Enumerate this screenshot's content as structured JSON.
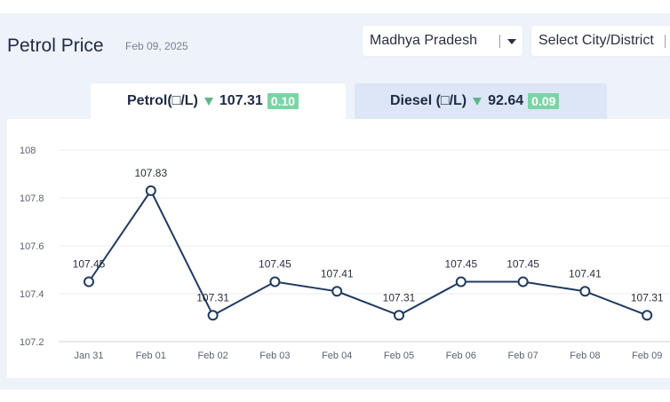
{
  "header": {
    "title": "Petrol Price",
    "date": "Feb 09, 2025",
    "state_select": "Madhya Pradesh",
    "city_select": "Select City/District"
  },
  "tabs": [
    {
      "label": "Petrol(□/L)",
      "price": "107.31",
      "change": "0.10",
      "active": true,
      "trend": "down"
    },
    {
      "label": "Diesel (□/L)",
      "price": "92.64",
      "change": "0.09",
      "active": false,
      "trend": "down"
    }
  ],
  "colors": {
    "line": "#1f3a5f",
    "badge": "#7cd4a6",
    "trend_down": "#5cb88b",
    "active_tab": "#ffffff",
    "inactive_tab": "#dce6f6"
  },
  "chart_data": {
    "type": "line",
    "categories": [
      "Jan 31",
      "Feb 01",
      "Feb 02",
      "Feb 03",
      "Feb 04",
      "Feb 05",
      "Feb 06",
      "Feb 07",
      "Feb 08",
      "Feb 09"
    ],
    "values": [
      107.45,
      107.83,
      107.31,
      107.45,
      107.41,
      107.31,
      107.45,
      107.45,
      107.41,
      107.31
    ],
    "data_labels": [
      "107.45",
      "107.83",
      "107.31",
      "107.45",
      "107.41",
      "107.31",
      "107.45",
      "107.45",
      "107.41",
      "107.31"
    ],
    "y_ticks": [
      "108",
      "107.8",
      "107.6",
      "107.4",
      "107.2"
    ],
    "ylim": [
      107.2,
      108
    ],
    "grid": true,
    "legend": false
  }
}
